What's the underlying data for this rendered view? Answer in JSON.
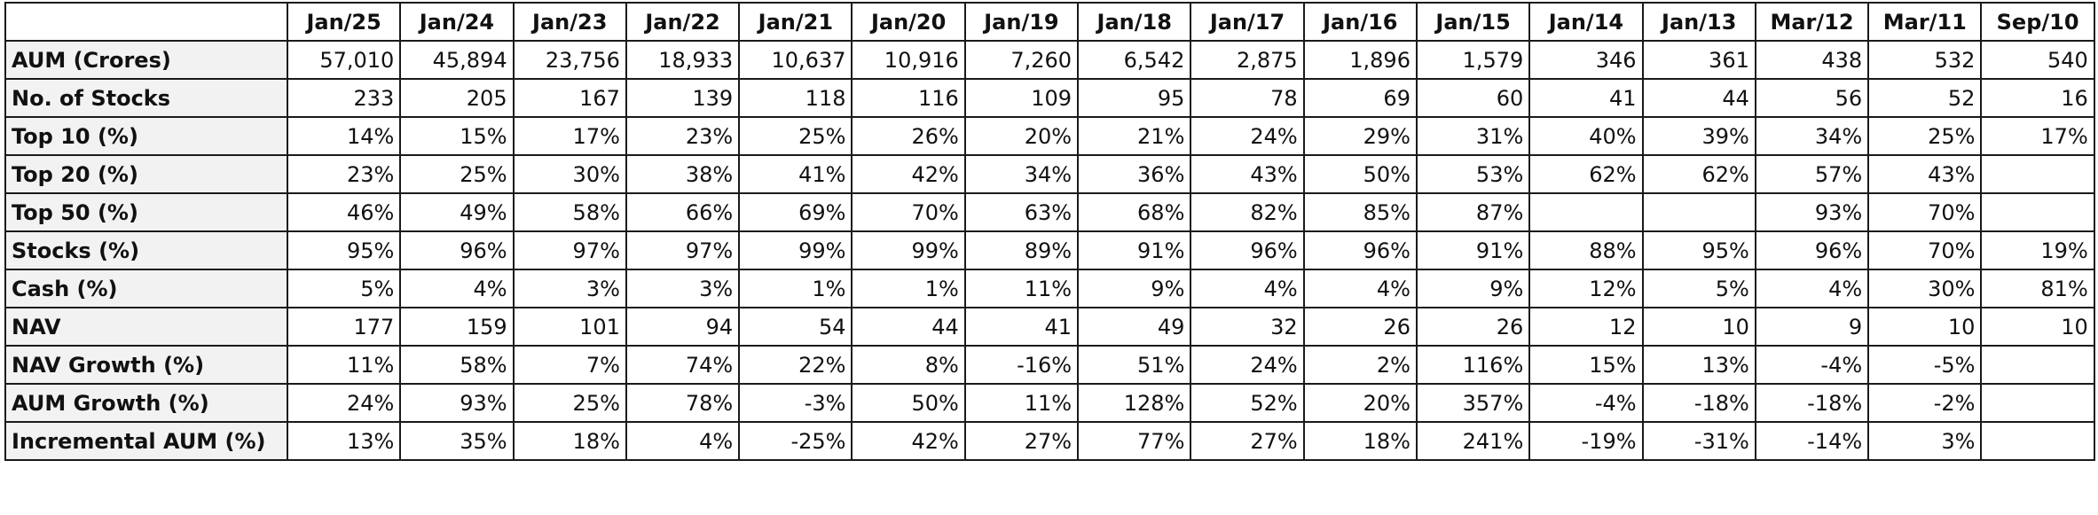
{
  "table": {
    "columns": [
      "Jan/25",
      "Jan/24",
      "Jan/23",
      "Jan/22",
      "Jan/21",
      "Jan/20",
      "Jan/19",
      "Jan/18",
      "Jan/17",
      "Jan/16",
      "Jan/15",
      "Jan/14",
      "Jan/13",
      "Mar/12",
      "Mar/11",
      "Sep/10"
    ],
    "rows": [
      {
        "label": "AUM (Crores)",
        "values": [
          "57,010",
          "45,894",
          "23,756",
          "18,933",
          "10,637",
          "10,916",
          "7,260",
          "6,542",
          "2,875",
          "1,896",
          "1,579",
          "346",
          "361",
          "438",
          "532",
          "540"
        ]
      },
      {
        "label": "No. of Stocks",
        "values": [
          "233",
          "205",
          "167",
          "139",
          "118",
          "116",
          "109",
          "95",
          "78",
          "69",
          "60",
          "41",
          "44",
          "56",
          "52",
          "16"
        ]
      },
      {
        "label": "Top 10 (%)",
        "values": [
          "14%",
          "15%",
          "17%",
          "23%",
          "25%",
          "26%",
          "20%",
          "21%",
          "24%",
          "29%",
          "31%",
          "40%",
          "39%",
          "34%",
          "25%",
          "17%"
        ]
      },
      {
        "label": "Top 20 (%)",
        "values": [
          "23%",
          "25%",
          "30%",
          "38%",
          "41%",
          "42%",
          "34%",
          "36%",
          "43%",
          "50%",
          "53%",
          "62%",
          "62%",
          "57%",
          "43%",
          ""
        ]
      },
      {
        "label": "Top 50 (%)",
        "values": [
          "46%",
          "49%",
          "58%",
          "66%",
          "69%",
          "70%",
          "63%",
          "68%",
          "82%",
          "85%",
          "87%",
          "",
          "",
          "93%",
          "70%",
          ""
        ]
      },
      {
        "label": "Stocks (%)",
        "values": [
          "95%",
          "96%",
          "97%",
          "97%",
          "99%",
          "99%",
          "89%",
          "91%",
          "96%",
          "96%",
          "91%",
          "88%",
          "95%",
          "96%",
          "70%",
          "19%"
        ]
      },
      {
        "label": "Cash (%)",
        "values": [
          "5%",
          "4%",
          "3%",
          "3%",
          "1%",
          "1%",
          "11%",
          "9%",
          "4%",
          "4%",
          "9%",
          "12%",
          "5%",
          "4%",
          "30%",
          "81%"
        ]
      },
      {
        "label": "NAV",
        "values": [
          "177",
          "159",
          "101",
          "94",
          "54",
          "44",
          "41",
          "49",
          "32",
          "26",
          "26",
          "12",
          "10",
          "9",
          "10",
          "10"
        ]
      },
      {
        "label": "NAV Growth (%)",
        "values": [
          "11%",
          "58%",
          "7%",
          "74%",
          "22%",
          "8%",
          "-16%",
          "51%",
          "24%",
          "2%",
          "116%",
          "15%",
          "13%",
          "-4%",
          "-5%",
          ""
        ]
      },
      {
        "label": "AUM Growth (%)",
        "values": [
          "24%",
          "93%",
          "25%",
          "78%",
          "-3%",
          "50%",
          "11%",
          "128%",
          "52%",
          "20%",
          "357%",
          "-4%",
          "-18%",
          "-18%",
          "-2%",
          ""
        ]
      },
      {
        "label": "Incremental AUM (%)",
        "values": [
          "13%",
          "35%",
          "18%",
          "4%",
          "-25%",
          "42%",
          "27%",
          "77%",
          "27%",
          "18%",
          "241%",
          "-19%",
          "-31%",
          "-14%",
          "3%",
          ""
        ]
      }
    ]
  }
}
